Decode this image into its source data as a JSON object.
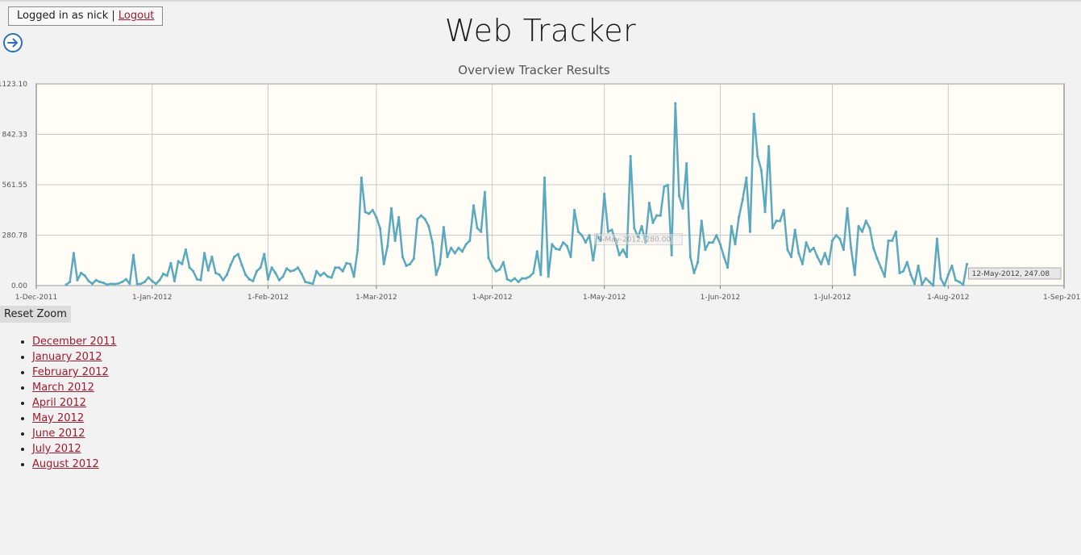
{
  "login": {
    "prefix": "Logged in as nick |",
    "logout_label": "Logout"
  },
  "page_title": "Web Tracker",
  "nav_icon": "arrow-right-circle-icon",
  "reset_zoom_label": "Reset Zoom",
  "months": [
    "December 2011",
    "January 2012",
    "February 2012",
    "March 2012",
    "April 2012",
    "May 2012",
    "June 2012",
    "July 2012",
    "August 2012"
  ],
  "colors": {
    "line": "#5aa9bf",
    "plot_bg": "#fffdf6",
    "link": "#a11a2e",
    "grid": "#c8c8c8"
  },
  "tooltips": [
    {
      "date": "2012-05-09",
      "value": 280.0,
      "text": "9-May-2012, 280.00",
      "style": "faded"
    },
    {
      "date": "2012-05-12",
      "value": 247.08,
      "text": "12-May-2012, 247.08",
      "style": "solid"
    }
  ],
  "chart_data": {
    "type": "line",
    "title": "Overview Tracker Results",
    "xlabel": "",
    "ylabel": "",
    "x_range": [
      "2011-12-01",
      "2012-09-01"
    ],
    "xticks": [
      "1-Dec-2011",
      "1-Jan-2012",
      "1-Feb-2012",
      "1-Mar-2012",
      "1-Apr-2012",
      "1-May-2012",
      "1-Jun-2012",
      "1-Jul-2012",
      "1-Aug-2012",
      "1-Sep-2012"
    ],
    "xtick_dates": [
      "2011-12-01",
      "2012-01-01",
      "2012-02-01",
      "2012-03-01",
      "2012-04-01",
      "2012-05-01",
      "2012-06-01",
      "2012-07-01",
      "2012-08-01",
      "2012-09-01"
    ],
    "yticks": [
      "0.00",
      "280.78",
      "561.55",
      "842.33",
      "1123.10"
    ],
    "ylim": [
      0,
      1123.1
    ],
    "grid": true,
    "legend": "none",
    "series": [
      {
        "start_date": "2011-12-09",
        "values": [
          5,
          20,
          180,
          30,
          70,
          55,
          25,
          10,
          30,
          20,
          15,
          5,
          10,
          8,
          12,
          20,
          35,
          10,
          170,
          8,
          10,
          20,
          45,
          25,
          10,
          30,
          65,
          55,
          125,
          25,
          135,
          120,
          200,
          100,
          80,
          35,
          30,
          180,
          85,
          160,
          70,
          60,
          30,
          60,
          115,
          160,
          175,
          115,
          60,
          35,
          25,
          80,
          100,
          175,
          35,
          100,
          70,
          30,
          50,
          95,
          80,
          85,
          100,
          65,
          20,
          15,
          10,
          80,
          55,
          70,
          50,
          45,
          100,
          100,
          80,
          125,
          120,
          50,
          200,
          600,
          410,
          400,
          420,
          380,
          320,
          120,
          220,
          430,
          250,
          380,
          160,
          110,
          120,
          150,
          370,
          390,
          370,
          330,
          240,
          60,
          120,
          325,
          160,
          210,
          180,
          210,
          190,
          230,
          250,
          445,
          320,
          300,
          520,
          155,
          110,
          80,
          90,
          130,
          35,
          25,
          40,
          20,
          40,
          40,
          50,
          70,
          190,
          60,
          600,
          50,
          230,
          205,
          200,
          240,
          220,
          160,
          420,
          300,
          280,
          240,
          280,
          140,
          280,
          250,
          510,
          300,
          310,
          250,
          170,
          200,
          160,
          720,
          320,
          270,
          330,
          240,
          460,
          350,
          390,
          390,
          550,
          560,
          170,
          1015,
          500,
          430,
          680,
          160,
          70,
          130,
          360,
          200,
          240,
          240,
          280,
          230,
          160,
          100,
          330,
          230,
          380,
          480,
          600,
          300,
          955,
          720,
          640,
          410,
          775,
          320,
          360,
          360,
          420,
          200,
          160,
          310,
          180,
          120,
          240,
          190,
          210,
          160,
          120,
          180,
          120,
          250,
          280,
          260,
          200,
          430,
          210,
          60,
          330,
          300,
          360,
          320,
          210,
          150,
          100,
          50,
          250,
          250,
          300,
          70,
          80,
          130,
          60,
          10,
          110,
          5,
          40,
          20,
          0,
          260,
          40,
          0,
          60,
          110,
          30,
          20,
          5,
          120
        ]
      }
    ]
  }
}
